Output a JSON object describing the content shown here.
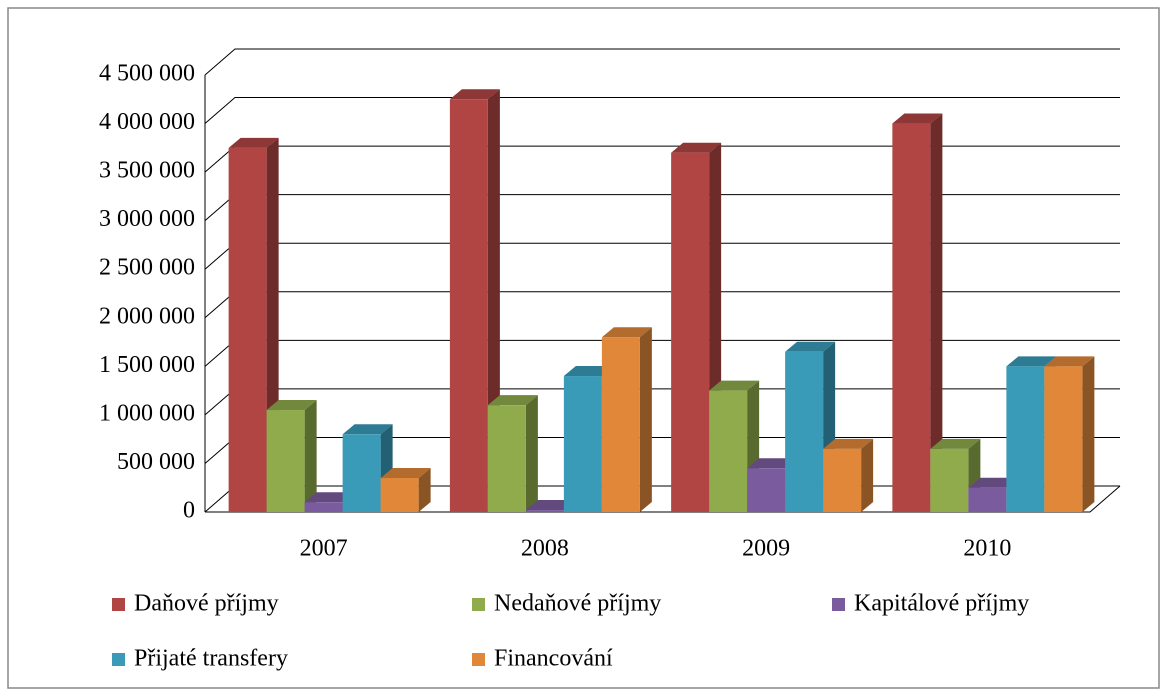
{
  "chart_data": {
    "type": "bar3d",
    "categories": [
      "2007",
      "2008",
      "2009",
      "2010"
    ],
    "series": [
      {
        "name": "Daňové příjmy",
        "color": "#b04543",
        "values": [
          3750000,
          4250000,
          3700000,
          4000000
        ]
      },
      {
        "name": "Nedaňové příjmy",
        "color": "#8fab4c",
        "values": [
          1050000,
          1100000,
          1250000,
          650000
        ]
      },
      {
        "name": "Kapitálové příjmy",
        "color": "#7a5b9e",
        "values": [
          100000,
          20000,
          450000,
          250000
        ]
      },
      {
        "name": "Přijaté transfery",
        "color": "#3a9bb9",
        "values": [
          800000,
          1400000,
          1650000,
          1500000
        ]
      },
      {
        "name": "Financování",
        "color": "#e0873a",
        "values": [
          350000,
          1800000,
          650000,
          1500000
        ]
      }
    ],
    "ylim": [
      0,
      4500000
    ],
    "yticks": [
      0,
      {
        "value": 500000,
        "label": "500 000"
      },
      {
        "value": 1000000,
        "label": "1 000 000"
      },
      {
        "value": 1500000,
        "label": "1 500 000"
      },
      {
        "value": 2000000,
        "label": "2 000 000"
      },
      {
        "value": 2500000,
        "label": "2 500 000"
      },
      {
        "value": 3000000,
        "label": "3 000 000"
      },
      {
        "value": 3500000,
        "label": "3 500 000"
      },
      {
        "value": 4000000,
        "label": "4 000 000"
      },
      {
        "value": 4500000,
        "label": "4 500 000"
      }
    ],
    "grid": true,
    "legend": "bottom"
  }
}
